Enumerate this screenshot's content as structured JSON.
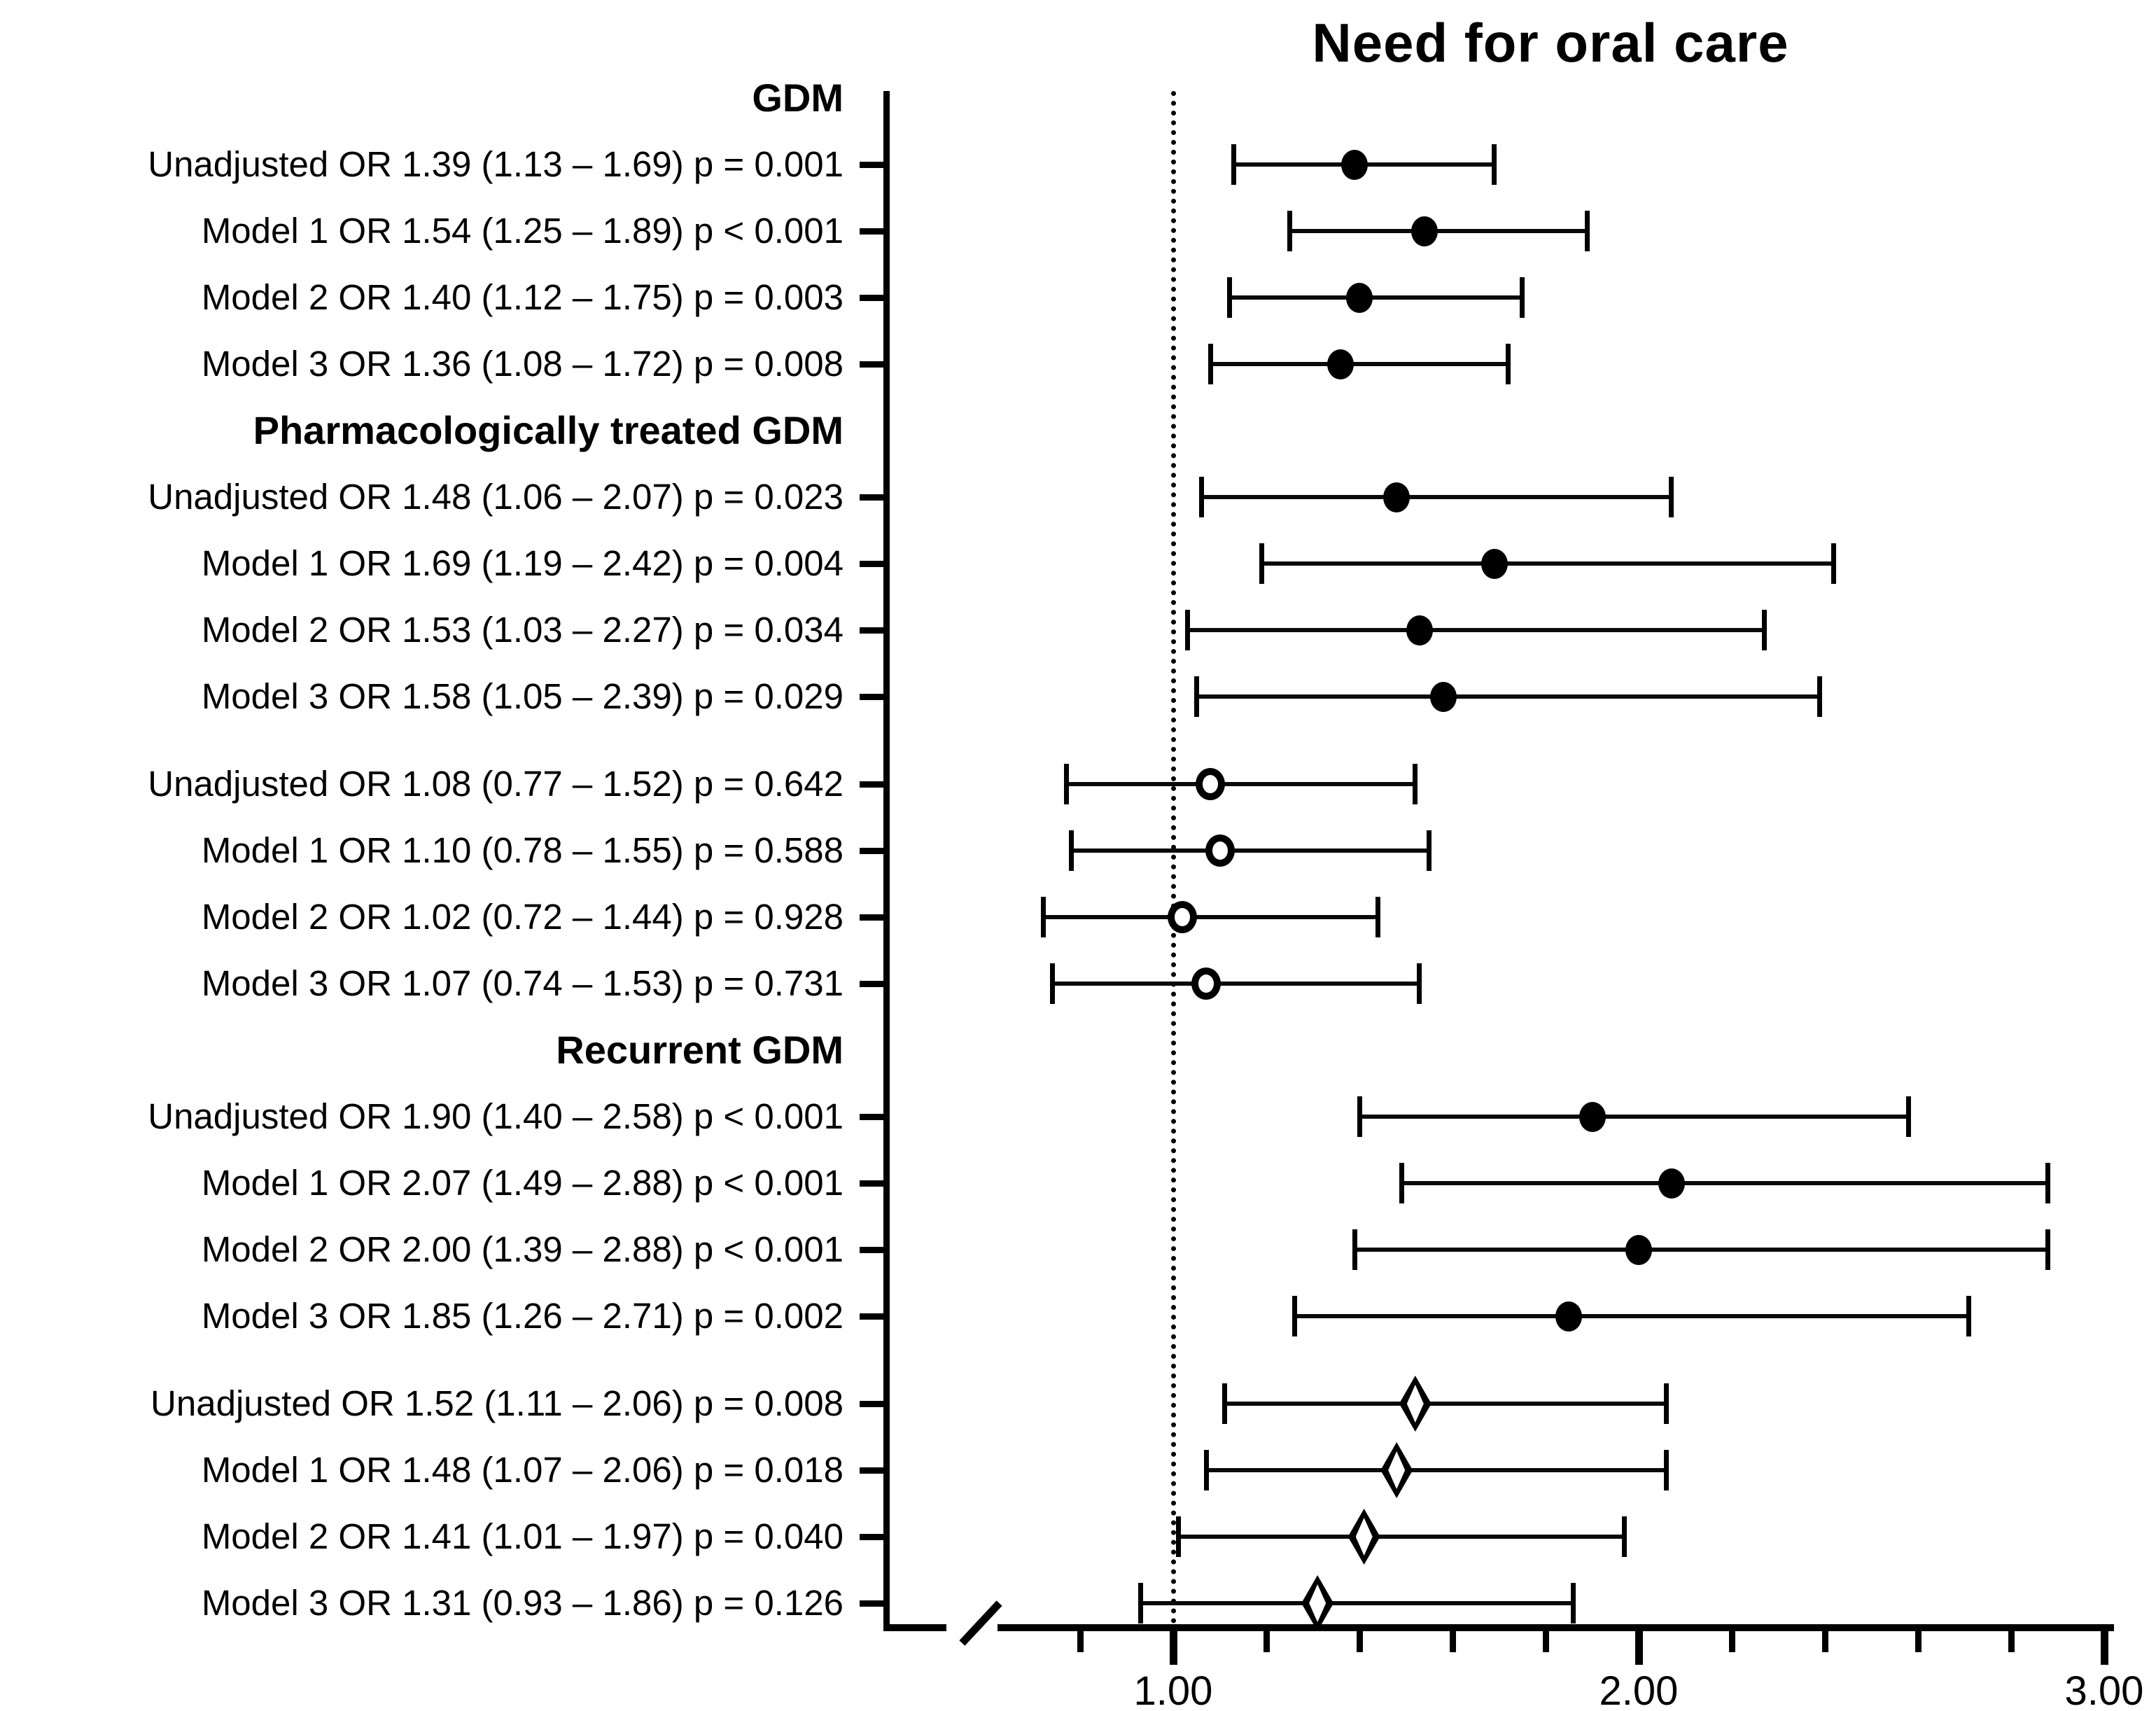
{
  "title": "Need for oral care",
  "chart_data": {
    "type": "scatter",
    "subtype": "forest_plot",
    "title": "Need for oral care",
    "orientation": "horizontal",
    "x_axis": {
      "label": "",
      "major_ticks": [
        {
          "value": 1.0,
          "label": "1.00"
        },
        {
          "value": 2.0,
          "label": "2.00"
        },
        {
          "value": 3.0,
          "label": "3.00"
        }
      ],
      "minor_tick_values": [
        0.8,
        1.2,
        1.4,
        1.6,
        1.8,
        2.2,
        2.4,
        2.6,
        2.8
      ],
      "reference_line_value": 1.0,
      "axis_break_before": 0.8,
      "grid": false
    },
    "groups": [
      {
        "header": "GDM",
        "marker": "filled-circle",
        "rows": [
          {
            "label": "Unadjusted",
            "or": "1.39",
            "ci_low": "1.13",
            "ci_high": "1.69",
            "p": "p = 0.001"
          },
          {
            "label": "Model 1",
            "or": "1.54",
            "ci_low": "1.25",
            "ci_high": "1.89",
            "p": "p < 0.001"
          },
          {
            "label": "Model 2",
            "or": "1.40",
            "ci_low": "1.12",
            "ci_high": "1.75",
            "p": "p = 0.003"
          },
          {
            "label": "Model 3",
            "or": "1.36",
            "ci_low": "1.08",
            "ci_high": "1.72",
            "p": "p = 0.008"
          }
        ]
      },
      {
        "header": "Pharmacologically treated GDM",
        "marker": "filled-circle",
        "rows": [
          {
            "label": "Unadjusted",
            "or": "1.48",
            "ci_low": "1.06",
            "ci_high": "2.07",
            "p": "p = 0.023"
          },
          {
            "label": "Model 1",
            "or": "1.69",
            "ci_low": "1.19",
            "ci_high": "2.42",
            "p": "p = 0.004"
          },
          {
            "label": "Model 2",
            "or": "1.53",
            "ci_low": "1.03",
            "ci_high": "2.27",
            "p": "p = 0.034"
          },
          {
            "label": "Model 3",
            "or": "1.58",
            "ci_low": "1.05",
            "ci_high": "2.39",
            "p": "p = 0.029"
          }
        ]
      },
      {
        "header": null,
        "marker": "open-circle",
        "rows": [
          {
            "label": "Unadjusted",
            "or": "1.08",
            "ci_low": "0.77",
            "ci_high": "1.52",
            "p": "p = 0.642"
          },
          {
            "label": "Model 1",
            "or": "1.10",
            "ci_low": "0.78",
            "ci_high": "1.55",
            "p": "p = 0.588"
          },
          {
            "label": "Model 2",
            "or": "1.02",
            "ci_low": "0.72",
            "ci_high": "1.44",
            "p": "p = 0.928"
          },
          {
            "label": "Model 3",
            "or": "1.07",
            "ci_low": "0.74",
            "ci_high": "1.53",
            "p": "p = 0.731"
          }
        ]
      },
      {
        "header": "Recurrent GDM",
        "marker": "filled-circle",
        "rows": [
          {
            "label": "Unadjusted",
            "or": "1.90",
            "ci_low": "1.40",
            "ci_high": "2.58",
            "p": "p < 0.001"
          },
          {
            "label": "Model 1",
            "or": "2.07",
            "ci_low": "1.49",
            "ci_high": "2.88",
            "p": "p < 0.001"
          },
          {
            "label": "Model 2",
            "or": "2.00",
            "ci_low": "1.39",
            "ci_high": "2.88",
            "p": "p < 0.001"
          },
          {
            "label": "Model 3",
            "or": "1.85",
            "ci_low": "1.26",
            "ci_high": "2.71",
            "p": "p = 0.002"
          }
        ]
      },
      {
        "header": null,
        "marker": "open-diamond",
        "rows": [
          {
            "label": "Unadjusted",
            "or": "1.52",
            "ci_low": "1.11",
            "ci_high": "2.06",
            "p": "p = 0.008"
          },
          {
            "label": "Model 1",
            "or": "1.48",
            "ci_low": "1.07",
            "ci_high": "2.06",
            "p": "p = 0.018"
          },
          {
            "label": "Model 2",
            "or": "1.41",
            "ci_low": "1.01",
            "ci_high": "1.97",
            "p": "p = 0.040"
          },
          {
            "label": "Model 3",
            "or": "1.31",
            "ci_low": "0.93",
            "ci_high": "1.86",
            "p": "p = 0.126"
          }
        ]
      }
    ],
    "colors": {
      "foreground": "#000000",
      "background": "#ffffff"
    }
  }
}
